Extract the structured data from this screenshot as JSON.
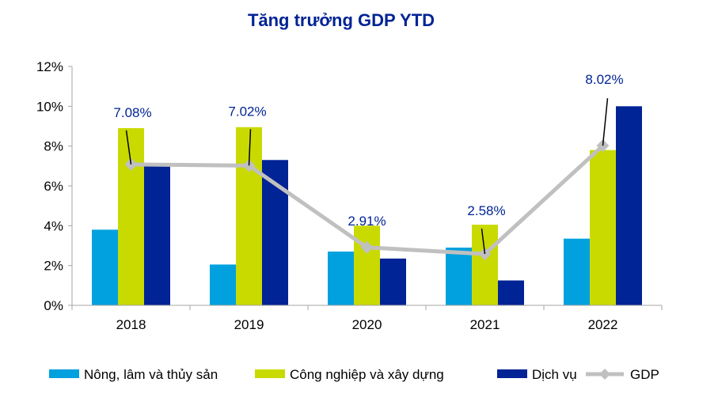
{
  "chart_data": {
    "type": "bar",
    "title": "Tăng trưởng GDP YTD",
    "categories": [
      "2018",
      "2019",
      "2020",
      "2021",
      "2022"
    ],
    "y_ticks": [
      "0%",
      "2%",
      "4%",
      "6%",
      "8%",
      "10%",
      "12%"
    ],
    "ylim": [
      0,
      12
    ],
    "y_unit": "%",
    "grid": false,
    "legend_position": "bottom",
    "series": [
      {
        "name": "Nông, lâm và thủy sản",
        "type": "bar",
        "color": "#00A1DE",
        "values": [
          3.8,
          2.05,
          2.7,
          2.9,
          3.35
        ]
      },
      {
        "name": "Công nghiệp và xây dựng",
        "type": "bar",
        "color": "#C9DA00",
        "values": [
          8.9,
          8.95,
          4.0,
          4.05,
          7.8
        ]
      },
      {
        "name": "Dịch vụ",
        "type": "bar",
        "color": "#002395",
        "values": [
          7.0,
          7.3,
          2.35,
          1.25,
          10.0
        ]
      },
      {
        "name": "GDP",
        "type": "line",
        "color": "#C0C0C0",
        "marker": "diamond",
        "values": [
          7.08,
          7.02,
          2.91,
          2.58,
          8.02
        ]
      }
    ],
    "data_labels": [
      "7.08%",
      "7.02%",
      "2.91%",
      "2.58%",
      "8.02%"
    ],
    "colors": {
      "title": "#002395",
      "label": "#002395",
      "axis": "#A6A6A6"
    }
  }
}
